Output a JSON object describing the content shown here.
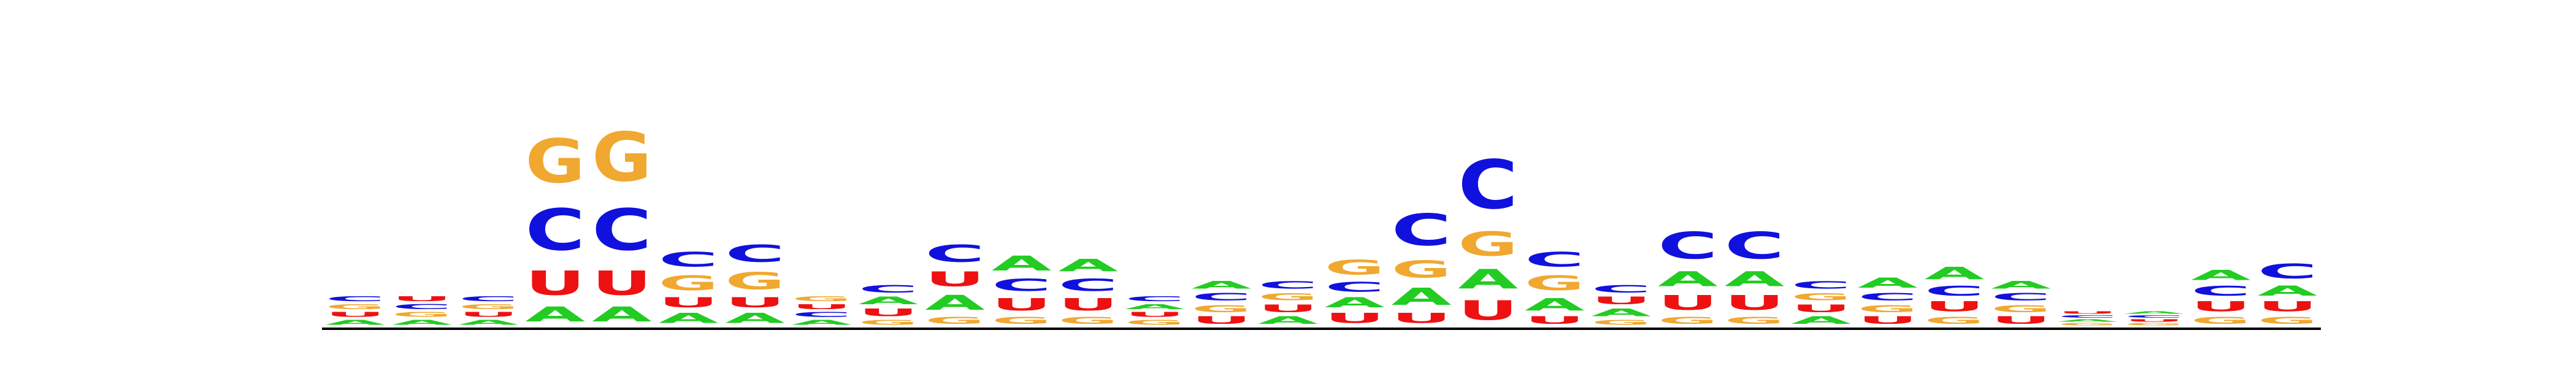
{
  "chart_data": {
    "type": "sequence-logo",
    "alphabet": [
      "A",
      "C",
      "G",
      "U"
    ],
    "colors": {
      "A": "#22cc22",
      "C": "#1111dd",
      "G": "#f0a830",
      "U": "#ee1111"
    },
    "ylim": [
      0,
      2
    ],
    "positions": [
      [
        [
          "A",
          0.02
        ],
        [
          "U",
          0.02
        ],
        [
          "G",
          0.02
        ],
        [
          "C",
          0.02
        ]
      ],
      [
        [
          "A",
          0.02
        ],
        [
          "G",
          0.02
        ],
        [
          "C",
          0.02
        ],
        [
          "U",
          0.02
        ]
      ],
      [
        [
          "A",
          0.02
        ],
        [
          "U",
          0.02
        ],
        [
          "G",
          0.02
        ],
        [
          "C",
          0.02
        ]
      ],
      [
        [
          "A",
          0.06
        ],
        [
          "U",
          0.1
        ],
        [
          "C",
          0.17
        ],
        [
          "G",
          0.18
        ]
      ],
      [
        [
          "A",
          0.06
        ],
        [
          "U",
          0.1
        ],
        [
          "C",
          0.17
        ],
        [
          "G",
          0.2
        ]
      ],
      [
        [
          "A",
          0.04
        ],
        [
          "U",
          0.04
        ],
        [
          "G",
          0.06
        ],
        [
          "C",
          0.06
        ]
      ],
      [
        [
          "A",
          0.04
        ],
        [
          "U",
          0.04
        ],
        [
          "G",
          0.07
        ],
        [
          "C",
          0.07
        ]
      ],
      [
        [
          "A",
          0.02
        ],
        [
          "C",
          0.02
        ],
        [
          "U",
          0.02
        ],
        [
          "G",
          0.02
        ]
      ],
      [
        [
          "G",
          0.02
        ],
        [
          "U",
          0.03
        ],
        [
          "A",
          0.03
        ],
        [
          "C",
          0.03
        ]
      ],
      [
        [
          "G",
          0.03
        ],
        [
          "A",
          0.06
        ],
        [
          "U",
          0.06
        ],
        [
          "C",
          0.07
        ]
      ],
      [
        [
          "G",
          0.03
        ],
        [
          "U",
          0.05
        ],
        [
          "C",
          0.05
        ],
        [
          "A",
          0.06
        ]
      ],
      [
        [
          "G",
          0.03
        ],
        [
          "U",
          0.05
        ],
        [
          "C",
          0.05
        ],
        [
          "A",
          0.05
        ]
      ],
      [
        [
          "G",
          0.02
        ],
        [
          "U",
          0.02
        ],
        [
          "A",
          0.02
        ],
        [
          "C",
          0.02
        ]
      ],
      [
        [
          "U",
          0.03
        ],
        [
          "G",
          0.03
        ],
        [
          "C",
          0.03
        ],
        [
          "A",
          0.03
        ]
      ],
      [
        [
          "A",
          0.03
        ],
        [
          "U",
          0.03
        ],
        [
          "G",
          0.03
        ],
        [
          "C",
          0.03
        ]
      ],
      [
        [
          "U",
          0.04
        ],
        [
          "A",
          0.04
        ],
        [
          "C",
          0.04
        ],
        [
          "G",
          0.06
        ]
      ],
      [
        [
          "U",
          0.04
        ],
        [
          "A",
          0.07
        ],
        [
          "G",
          0.07
        ],
        [
          "C",
          0.13
        ]
      ],
      [
        [
          "U",
          0.08
        ],
        [
          "A",
          0.08
        ],
        [
          "G",
          0.1
        ],
        [
          "C",
          0.2
        ]
      ],
      [
        [
          "U",
          0.03
        ],
        [
          "A",
          0.05
        ],
        [
          "G",
          0.06
        ],
        [
          "C",
          0.06
        ]
      ],
      [
        [
          "G",
          0.02
        ],
        [
          "A",
          0.03
        ],
        [
          "U",
          0.03
        ],
        [
          "C",
          0.03
        ]
      ],
      [
        [
          "G",
          0.03
        ],
        [
          "U",
          0.06
        ],
        [
          "A",
          0.06
        ],
        [
          "C",
          0.11
        ]
      ],
      [
        [
          "G",
          0.03
        ],
        [
          "U",
          0.06
        ],
        [
          "A",
          0.06
        ],
        [
          "C",
          0.11
        ]
      ],
      [
        [
          "A",
          0.03
        ],
        [
          "U",
          0.03
        ],
        [
          "G",
          0.03
        ],
        [
          "C",
          0.03
        ]
      ],
      [
        [
          "U",
          0.03
        ],
        [
          "G",
          0.03
        ],
        [
          "C",
          0.03
        ],
        [
          "A",
          0.04
        ]
      ],
      [
        [
          "G",
          0.03
        ],
        [
          "U",
          0.04
        ],
        [
          "C",
          0.04
        ],
        [
          "A",
          0.05
        ]
      ],
      [
        [
          "U",
          0.03
        ],
        [
          "G",
          0.03
        ],
        [
          "C",
          0.03
        ],
        [
          "A",
          0.03
        ]
      ],
      [
        [
          "G",
          0.01
        ],
        [
          "A",
          0.01
        ],
        [
          "C",
          0.01
        ],
        [
          "U",
          0.01
        ]
      ],
      [
        [
          "G",
          0.01
        ],
        [
          "U",
          0.01
        ],
        [
          "C",
          0.01
        ],
        [
          "A",
          0.01
        ]
      ],
      [
        [
          "G",
          0.03
        ],
        [
          "U",
          0.04
        ],
        [
          "C",
          0.04
        ],
        [
          "A",
          0.04
        ]
      ],
      [
        [
          "G",
          0.03
        ],
        [
          "U",
          0.04
        ],
        [
          "A",
          0.04
        ],
        [
          "C",
          0.06
        ]
      ]
    ]
  }
}
